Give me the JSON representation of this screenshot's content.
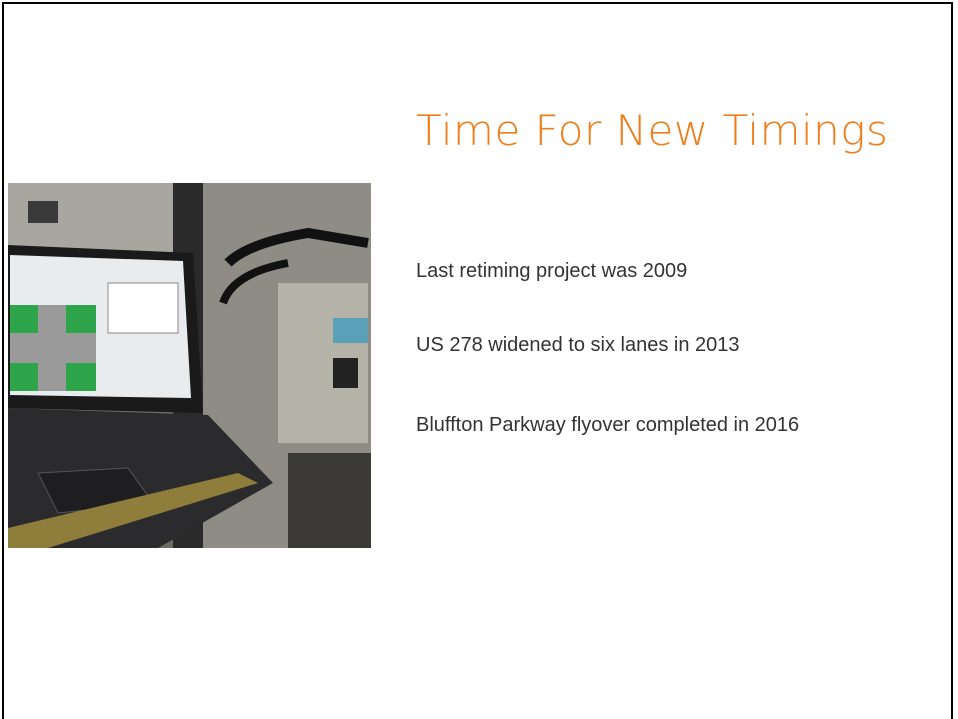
{
  "title": "Time For New Timings",
  "bullets": [
    "Last retiming project was 2009",
    "US 278 widened to six lanes in 2013",
    "Bluffton Parkway flyover completed in 2016"
  ]
}
